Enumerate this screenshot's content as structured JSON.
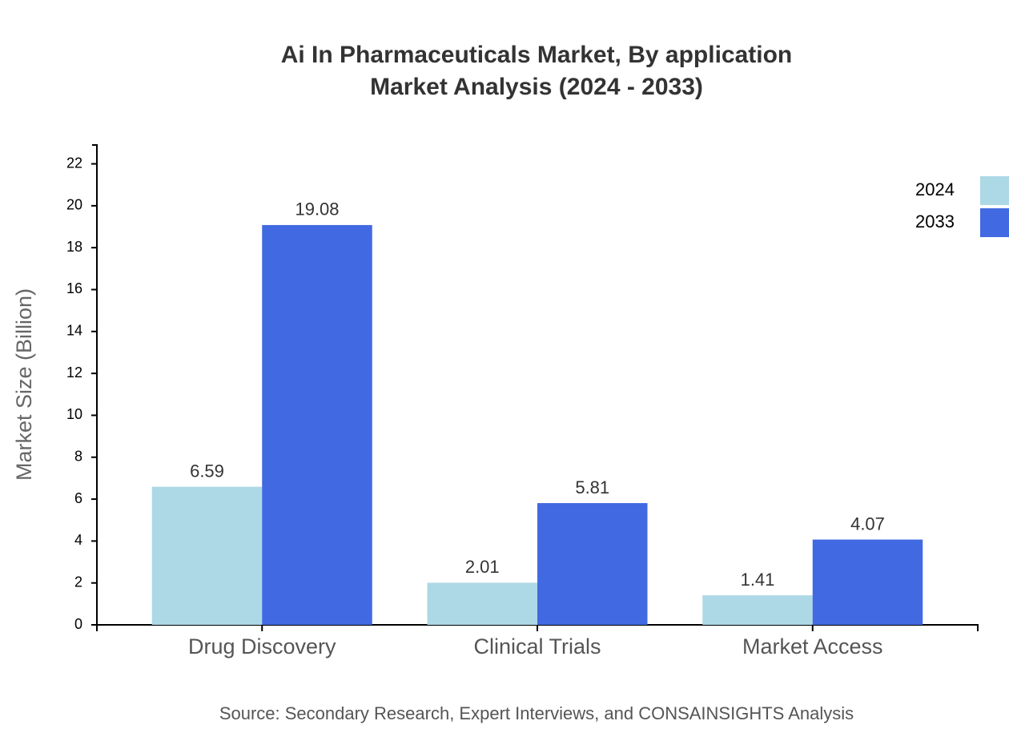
{
  "chart_data": {
    "type": "bar",
    "title": "Ai In Pharmaceuticals Market, By application",
    "subtitle": "Market Analysis (2024 - 2033)",
    "y_label": "Market Size (Billion)",
    "source": "Source: Secondary Research, Expert Interviews, and CONSAINSIGHTS Analysis",
    "categories": [
      "Drug Discovery",
      "Clinical Trials",
      "Market Access"
    ],
    "series": [
      {
        "name": "2024",
        "color": "#add8e6",
        "values": [
          6.59,
          2.01,
          1.41
        ]
      },
      {
        "name": "2033",
        "color": "#4169e1",
        "values": [
          19.08,
          5.81,
          4.07
        ]
      }
    ],
    "ylim": [
      0,
      22.9
    ],
    "yticks": [
      0,
      2,
      4,
      6,
      8,
      10,
      12,
      14,
      16,
      18,
      20,
      22
    ],
    "legend": "top-right"
  }
}
